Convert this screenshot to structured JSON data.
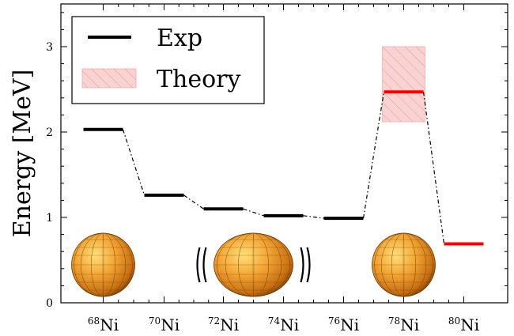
{
  "chart_data": {
    "type": "line",
    "ylabel": "Energy [MeV]",
    "ylim": [
      0,
      3.5
    ],
    "yticks": [
      0,
      1,
      2,
      3
    ],
    "categories": [
      {
        "mass": "68",
        "element": "Ni"
      },
      {
        "mass": "70",
        "element": "Ni"
      },
      {
        "mass": "72",
        "element": "Ni"
      },
      {
        "mass": "74",
        "element": "Ni"
      },
      {
        "mass": "76",
        "element": "Ni"
      },
      {
        "mass": "78",
        "element": "Ni"
      },
      {
        "mass": "80",
        "element": "Ni"
      }
    ],
    "series": [
      {
        "name": "Exp",
        "color": "#000000",
        "style": "dash-dot",
        "values": [
          2.03,
          1.26,
          1.1,
          1.02,
          0.99,
          null,
          null
        ]
      },
      {
        "name": "Theory",
        "color": "#ff0000",
        "values": [
          null,
          null,
          null,
          null,
          null,
          2.47,
          0.69
        ]
      }
    ],
    "theory_band": {
      "category_index": 5,
      "low": 2.12,
      "high": 3.0,
      "color": "#f4b6b6",
      "hatch": true
    },
    "legend": {
      "position": "top-left",
      "entries": [
        "Exp",
        "Theory"
      ]
    },
    "grid": false,
    "shape_icons": [
      {
        "name": "spherical-nucleus-icon",
        "category_index": 0
      },
      {
        "name": "deformed-vibrating-nucleus-icon",
        "category_index": 2.5
      },
      {
        "name": "spherical-nucleus-icon",
        "category_index": 5
      }
    ]
  }
}
